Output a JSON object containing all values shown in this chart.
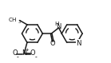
{
  "bg_color": "#ffffff",
  "line_color": "#1a1a1a",
  "lw": 1.1,
  "figsize": [
    1.39,
    0.79
  ],
  "dpi": 100,
  "xlim": [
    -1.0,
    8.5
  ],
  "ylim": [
    -2.5,
    3.5
  ]
}
